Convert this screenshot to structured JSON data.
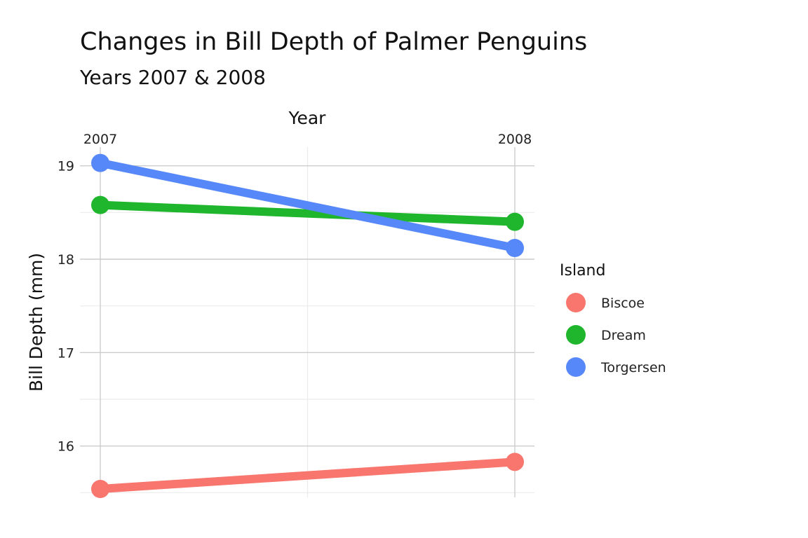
{
  "chart_data": {
    "type": "line",
    "title": "Changes in Bill Depth of Palmer Penguins",
    "subtitle": "Years 2007 & 2008",
    "xlabel": "Year",
    "ylabel": "Bill Depth (mm)",
    "categories": [
      "2007",
      "2008"
    ],
    "ylim": [
      15.45,
      19.2
    ],
    "yticks": [
      16,
      17,
      18,
      19
    ],
    "grid": true,
    "x_axis_position": "top",
    "legend": {
      "title": "Island",
      "position": "right"
    },
    "series": [
      {
        "name": "Biscoe",
        "values": [
          15.54,
          15.83
        ],
        "color": "#F8766D"
      },
      {
        "name": "Dream",
        "values": [
          18.58,
          18.4
        ],
        "color": "#1FB62D"
      },
      {
        "name": "Torgersen",
        "values": [
          19.03,
          18.12
        ],
        "color": "#5788F9"
      }
    ]
  }
}
